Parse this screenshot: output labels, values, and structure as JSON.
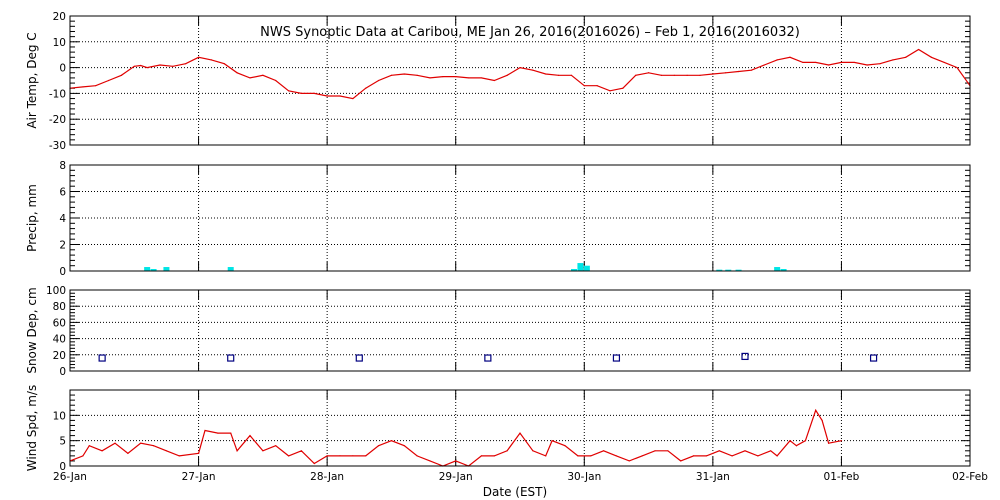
{
  "title": "NWS Synoptic Data at Caribou, ME   Jan 26, 2016(2016026) – Feb  1, 2016(2016032)",
  "xlabel": "Date (EST)",
  "x_ticks": [
    "26-Jan",
    "27-Jan",
    "28-Jan",
    "29-Jan",
    "30-Jan",
    "31-Jan",
    "01-Feb",
    "02-Feb"
  ],
  "colors": {
    "line": "#e00000",
    "bar": "#00e5e5",
    "marker": "#000080",
    "frame": "#000000",
    "grid": "#000000"
  },
  "chart_data": [
    {
      "type": "line",
      "ylabel": "Air Temp, Deg C",
      "xlim": [
        0,
        7
      ],
      "ylim": [
        -30,
        20
      ],
      "yticks": [
        -30,
        -20,
        -10,
        0,
        10,
        20
      ],
      "series": [
        {
          "x": [
            0,
            0.1,
            0.2,
            0.3,
            0.4,
            0.5,
            0.55,
            0.6,
            0.7,
            0.8,
            0.9,
            1.0,
            1.1,
            1.2,
            1.3,
            1.4,
            1.5,
            1.6,
            1.7,
            1.8,
            1.9,
            2.0,
            2.1,
            2.2,
            2.3,
            2.4,
            2.5,
            2.6,
            2.7,
            2.8,
            2.9,
            3.0,
            3.1,
            3.2,
            3.3,
            3.4,
            3.5,
            3.6,
            3.7,
            3.8,
            3.9,
            4.0,
            4.1,
            4.2,
            4.3,
            4.4,
            4.5,
            4.6,
            4.7,
            4.8,
            4.9,
            5.0,
            5.1,
            5.2,
            5.3,
            5.4,
            5.5,
            5.6,
            5.7,
            5.8,
            5.9,
            6.0,
            6.1,
            6.2,
            6.3,
            6.4,
            6.5,
            6.6,
            6.7,
            6.8,
            6.9,
            7.0
          ],
          "y": [
            -8,
            -7.5,
            -7,
            -5,
            -3,
            0.5,
            0.8,
            0,
            1,
            0.5,
            1.5,
            4,
            3,
            1.5,
            -2,
            -4,
            -3,
            -5,
            -9,
            -10,
            -10,
            -11,
            -11,
            -12,
            -8,
            -5,
            -3,
            -2.5,
            -3,
            -4,
            -3.5,
            -3.5,
            -4,
            -4,
            -5,
            -3,
            0,
            -1,
            -2.5,
            -3,
            -3,
            -7,
            -7,
            -9,
            -8,
            -3,
            -2,
            -3,
            -3,
            -3,
            -3,
            -2.5,
            -2,
            -1.5,
            -1,
            1,
            3,
            4,
            2,
            2,
            1,
            2,
            2,
            1,
            1.5,
            3,
            4,
            7,
            4,
            2,
            0,
            -7
          ]
        }
      ]
    },
    {
      "type": "bar",
      "ylabel": "Precip, mm",
      "xlim": [
        0,
        7
      ],
      "ylim": [
        0,
        8
      ],
      "yticks": [
        0,
        2,
        4,
        6,
        8
      ],
      "series": [
        {
          "x": [
            0.6,
            0.65,
            0.75,
            1.25,
            3.92,
            3.97,
            4.02,
            5.05,
            5.12,
            5.2,
            5.5,
            5.55
          ],
          "values": [
            0.3,
            0.15,
            0.3,
            0.3,
            0.15,
            0.6,
            0.4,
            0.1,
            0.1,
            0.1,
            0.3,
            0.15
          ]
        }
      ]
    },
    {
      "type": "scatter",
      "ylabel": "Snow Dep, cm",
      "xlim": [
        0,
        7
      ],
      "ylim": [
        0,
        100
      ],
      "yticks": [
        0,
        20,
        40,
        60,
        80,
        100
      ],
      "series": [
        {
          "x": [
            0.25,
            1.25,
            2.25,
            3.25,
            4.25,
            5.25,
            6.25
          ],
          "y": [
            16,
            16,
            16,
            16,
            16,
            18,
            16
          ]
        }
      ]
    },
    {
      "type": "line",
      "ylabel": "Wind Spd, m/s",
      "xlim": [
        0,
        7
      ],
      "ylim": [
        0,
        15
      ],
      "yticks": [
        0,
        5,
        10
      ],
      "series": [
        {
          "x": [
            0,
            0.1,
            0.15,
            0.25,
            0.35,
            0.45,
            0.55,
            0.65,
            0.75,
            0.85,
            1.0,
            1.05,
            1.15,
            1.25,
            1.3,
            1.4,
            1.5,
            1.6,
            1.7,
            1.8,
            1.9,
            2.0,
            2.1,
            2.2,
            2.3,
            2.4,
            2.5,
            2.6,
            2.7,
            2.8,
            2.9,
            3.0,
            3.1,
            3.2,
            3.3,
            3.4,
            3.5,
            3.6,
            3.7,
            3.75,
            3.85,
            3.95,
            4.05,
            4.15,
            4.25,
            4.35,
            4.45,
            4.55,
            4.65,
            4.75,
            4.85,
            4.95,
            5.05,
            5.15,
            5.25,
            5.35,
            5.45,
            5.5,
            5.6,
            5.65,
            5.72,
            5.8,
            5.85,
            5.9,
            6.0
          ],
          "y": [
            1,
            2,
            4,
            3,
            4.5,
            2.5,
            4.5,
            4,
            3,
            2,
            2.5,
            7,
            6.5,
            6.5,
            3,
            6,
            3,
            4,
            2,
            3,
            0.5,
            2,
            2,
            2,
            2,
            4,
            5,
            4,
            2,
            1,
            0,
            1,
            0,
            2,
            2,
            3,
            6.5,
            3,
            2,
            5,
            4,
            2,
            2,
            3,
            2,
            1,
            2,
            3,
            3,
            1,
            2,
            2,
            3,
            2,
            3,
            2,
            3,
            2,
            5,
            4,
            5,
            11,
            9,
            4.5,
            5
          ]
        }
      ]
    }
  ]
}
